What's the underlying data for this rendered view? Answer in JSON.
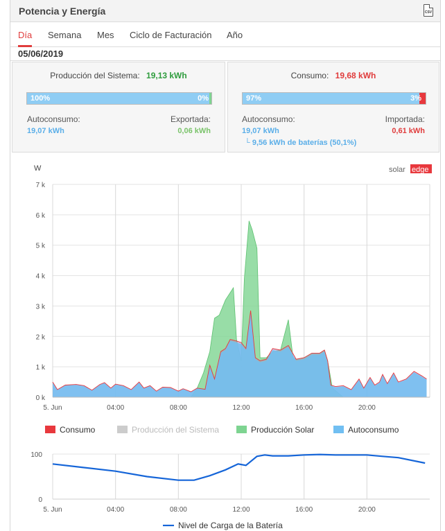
{
  "header": {
    "title": "Potencia y Energía",
    "csv_icon": "csv-icon",
    "csv_label": "CSV"
  },
  "tabs": [
    {
      "label": "Día",
      "active": true
    },
    {
      "label": "Semana",
      "active": false
    },
    {
      "label": "Mes",
      "active": false
    },
    {
      "label": "Ciclo de Facturación",
      "active": false
    },
    {
      "label": "Año",
      "active": false
    }
  ],
  "date": "05/06/2019",
  "production": {
    "label": "Producción del Sistema:",
    "value": "19,13 kWh",
    "bar_left_pct": "100%",
    "bar_right_pct": "0%",
    "self_label": "Autoconsumo:",
    "self_value": "19,07 kWh",
    "export_label": "Exportada:",
    "export_value": "0,06 kWh"
  },
  "consumption": {
    "label": "Consumo:",
    "value": "19,68 kWh",
    "bar_left_pct": "97%",
    "bar_right_pct": "3%",
    "self_label": "Autoconsumo:",
    "self_value": "19,07 kWh",
    "battery_note": "└ 9,56 kWh de baterías (50,1%)",
    "import_label": "Importada:",
    "import_value": "0,61 kWh"
  },
  "colors": {
    "consumo": "#e8383d",
    "produccion": "#cccccc",
    "solar": "#7ed491",
    "autoconsumo": "#71bff2",
    "battery_line": "#1565d8",
    "green_text": "#2e9c3d",
    "red_text": "#e03c3c",
    "blue_text": "#5aaee8",
    "active_tab": "#e03c3c"
  },
  "logo": {
    "part1": "solar",
    "part2": "edge"
  },
  "chart_data": [
    {
      "type": "area",
      "ylabel": "W",
      "ylim": [
        0,
        7000
      ],
      "y_ticks": [
        "0 k",
        "1 k",
        "2 k",
        "3 k",
        "4 k",
        "5 k",
        "6 k",
        "7 k"
      ],
      "x_ticks": [
        "5. Jun",
        "04:00",
        "08:00",
        "12:00",
        "16:00",
        "20:00"
      ],
      "x_range_hours": [
        0,
        24
      ],
      "grid": true,
      "legend_position": "bottom",
      "series": [
        {
          "name": "Consumo",
          "points": [
            [
              0,
              500
            ],
            [
              0.3,
              250
            ],
            [
              0.8,
              400
            ],
            [
              1.5,
              420
            ],
            [
              2,
              380
            ],
            [
              2.5,
              230
            ],
            [
              3,
              420
            ],
            [
              3.3,
              480
            ],
            [
              3.7,
              300
            ],
            [
              4,
              430
            ],
            [
              4.5,
              380
            ],
            [
              5,
              250
            ],
            [
              5.5,
              500
            ],
            [
              5.8,
              300
            ],
            [
              6.2,
              380
            ],
            [
              6.6,
              200
            ],
            [
              7,
              330
            ],
            [
              7.5,
              320
            ],
            [
              8,
              200
            ],
            [
              8.3,
              280
            ],
            [
              8.8,
              180
            ],
            [
              9.2,
              300
            ],
            [
              9.7,
              260
            ],
            [
              10,
              1050
            ],
            [
              10.3,
              600
            ],
            [
              10.7,
              1500
            ],
            [
              11,
              1600
            ],
            [
              11.3,
              1900
            ],
            [
              11.7,
              1850
            ],
            [
              12,
              1800
            ],
            [
              12.3,
              1600
            ],
            [
              12.6,
              2850
            ],
            [
              12.9,
              1300
            ],
            [
              13.2,
              1200
            ],
            [
              13.6,
              1250
            ],
            [
              14,
              1600
            ],
            [
              14.5,
              1550
            ],
            [
              15,
              1700
            ],
            [
              15.5,
              1250
            ],
            [
              16,
              1300
            ],
            [
              16.5,
              1450
            ],
            [
              17,
              1450
            ],
            [
              17.3,
              1550
            ],
            [
              17.5,
              1200
            ],
            [
              17.7,
              400
            ],
            [
              18,
              350
            ],
            [
              18.5,
              380
            ],
            [
              19,
              250
            ],
            [
              19.5,
              600
            ],
            [
              19.8,
              300
            ],
            [
              20.2,
              650
            ],
            [
              20.5,
              400
            ],
            [
              20.8,
              500
            ],
            [
              21,
              750
            ],
            [
              21.3,
              450
            ],
            [
              21.7,
              800
            ],
            [
              22,
              500
            ],
            [
              22.5,
              600
            ],
            [
              23,
              850
            ],
            [
              23.5,
              700
            ],
            [
              23.8,
              600
            ]
          ]
        },
        {
          "name": "Producción Solar",
          "points": [
            [
              0,
              0
            ],
            [
              8.8,
              0
            ],
            [
              9.2,
              300
            ],
            [
              9.6,
              800
            ],
            [
              10,
              1500
            ],
            [
              10.3,
              2600
            ],
            [
              10.6,
              2700
            ],
            [
              11,
              3200
            ],
            [
              11.5,
              3600
            ],
            [
              11.7,
              1900
            ],
            [
              12,
              1200
            ],
            [
              12.2,
              3900
            ],
            [
              12.5,
              5800
            ],
            [
              12.7,
              5500
            ],
            [
              13,
              4900
            ],
            [
              13.2,
              1300
            ],
            [
              13.6,
              1300
            ],
            [
              14,
              1500
            ],
            [
              14.5,
              1550
            ],
            [
              15,
              2550
            ],
            [
              15.3,
              1300
            ],
            [
              15.5,
              1250
            ],
            [
              16,
              1300
            ],
            [
              16.5,
              1450
            ],
            [
              17,
              1450
            ],
            [
              17.3,
              1550
            ],
            [
              17.5,
              1200
            ],
            [
              17.8,
              300
            ],
            [
              18.5,
              0
            ],
            [
              24,
              0
            ]
          ]
        },
        {
          "name": "Autoconsumo",
          "points": [
            [
              0,
              480
            ],
            [
              0.3,
              240
            ],
            [
              0.8,
              390
            ],
            [
              1.5,
              410
            ],
            [
              2,
              370
            ],
            [
              2.5,
              220
            ],
            [
              3,
              410
            ],
            [
              3.3,
              470
            ],
            [
              3.7,
              290
            ],
            [
              4,
              420
            ],
            [
              4.5,
              370
            ],
            [
              5,
              240
            ],
            [
              5.5,
              490
            ],
            [
              5.8,
              290
            ],
            [
              6.2,
              370
            ],
            [
              6.6,
              190
            ],
            [
              7,
              320
            ],
            [
              7.5,
              310
            ],
            [
              8,
              190
            ],
            [
              8.3,
              270
            ],
            [
              8.8,
              170
            ],
            [
              9.2,
              290
            ],
            [
              9.7,
              250
            ],
            [
              10,
              1000
            ],
            [
              10.3,
              580
            ],
            [
              10.7,
              1450
            ],
            [
              11,
              1550
            ],
            [
              11.3,
              1850
            ],
            [
              11.7,
              1800
            ],
            [
              12,
              1750
            ],
            [
              12.3,
              1550
            ],
            [
              12.6,
              2800
            ],
            [
              12.9,
              1250
            ],
            [
              13.2,
              1150
            ],
            [
              13.6,
              1200
            ],
            [
              14,
              1550
            ],
            [
              14.5,
              1500
            ],
            [
              15,
              1650
            ],
            [
              15.5,
              1200
            ],
            [
              16,
              1250
            ],
            [
              16.5,
              1400
            ],
            [
              17,
              1400
            ],
            [
              17.3,
              1500
            ],
            [
              17.5,
              1150
            ],
            [
              17.7,
              380
            ],
            [
              18,
              330
            ],
            [
              18.5,
              360
            ],
            [
              19,
              240
            ],
            [
              19.5,
              580
            ],
            [
              19.8,
              290
            ],
            [
              20.2,
              620
            ],
            [
              20.5,
              380
            ],
            [
              20.8,
              480
            ],
            [
              21,
              720
            ],
            [
              21.3,
              430
            ],
            [
              21.7,
              780
            ],
            [
              22,
              480
            ],
            [
              22.5,
              580
            ],
            [
              23,
              820
            ],
            [
              23.5,
              680
            ],
            [
              23.8,
              580
            ]
          ]
        }
      ],
      "legend": [
        "Consumo",
        "Producción del Sistema",
        "Producción Solar",
        "Autoconsumo"
      ]
    },
    {
      "type": "line",
      "ylim": [
        0,
        100
      ],
      "y_ticks": [
        "0",
        "100"
      ],
      "x_ticks": [
        "5. Jun",
        "04:00",
        "08:00",
        "12:00",
        "16:00",
        "20:00"
      ],
      "grid": true,
      "series": [
        {
          "name": "Nivel de Carga de la Batería",
          "points": [
            [
              0,
              78
            ],
            [
              2,
              70
            ],
            [
              4,
              62
            ],
            [
              6,
              50
            ],
            [
              8,
              42
            ],
            [
              9,
              42
            ],
            [
              10,
              52
            ],
            [
              11,
              65
            ],
            [
              11.8,
              78
            ],
            [
              12.3,
              75
            ],
            [
              13,
              95
            ],
            [
              13.5,
              98
            ],
            [
              14,
              96
            ],
            [
              15,
              96
            ],
            [
              16,
              98
            ],
            [
              17,
              99
            ],
            [
              18,
              98
            ],
            [
              20,
              98
            ],
            [
              21,
              95
            ],
            [
              22,
              92
            ],
            [
              23.7,
              80
            ]
          ]
        }
      ]
    }
  ]
}
